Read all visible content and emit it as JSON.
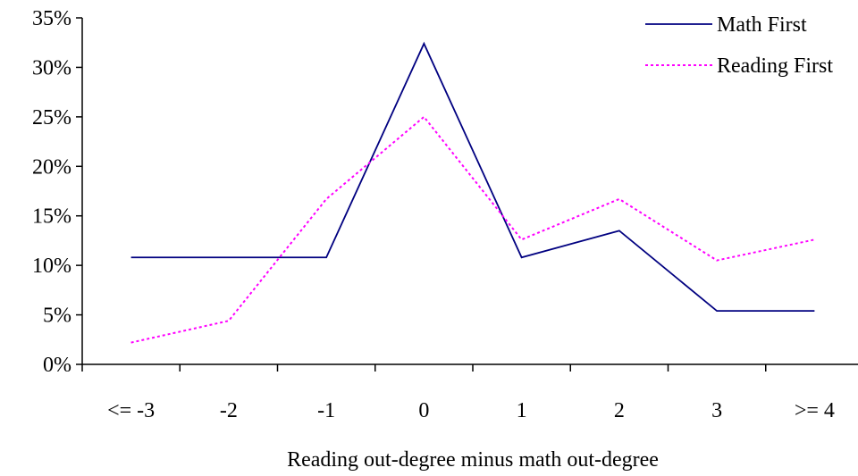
{
  "chart_data": {
    "type": "line",
    "categories": [
      "<= -3",
      "-2",
      "-1",
      "0",
      "1",
      "2",
      "3",
      ">= 4"
    ],
    "xlabel": "Reading out-degree minus math out-degree",
    "ylabel": "",
    "ylim": [
      0,
      35
    ],
    "yticks": [
      "0%",
      "5%",
      "10%",
      "15%",
      "20%",
      "25%",
      "30%",
      "35%"
    ],
    "grid": false,
    "legend_position": "top-right",
    "series": [
      {
        "name": "Math First",
        "values": [
          10.8,
          10.8,
          10.8,
          32.4,
          10.8,
          13.5,
          5.4,
          5.4
        ],
        "color": "#000080",
        "style": "solid"
      },
      {
        "name": "Reading First",
        "values": [
          2.2,
          4.4,
          16.7,
          25.0,
          12.6,
          16.7,
          10.5,
          12.6
        ],
        "color": "#ff00ff",
        "style": "dotted"
      }
    ]
  }
}
